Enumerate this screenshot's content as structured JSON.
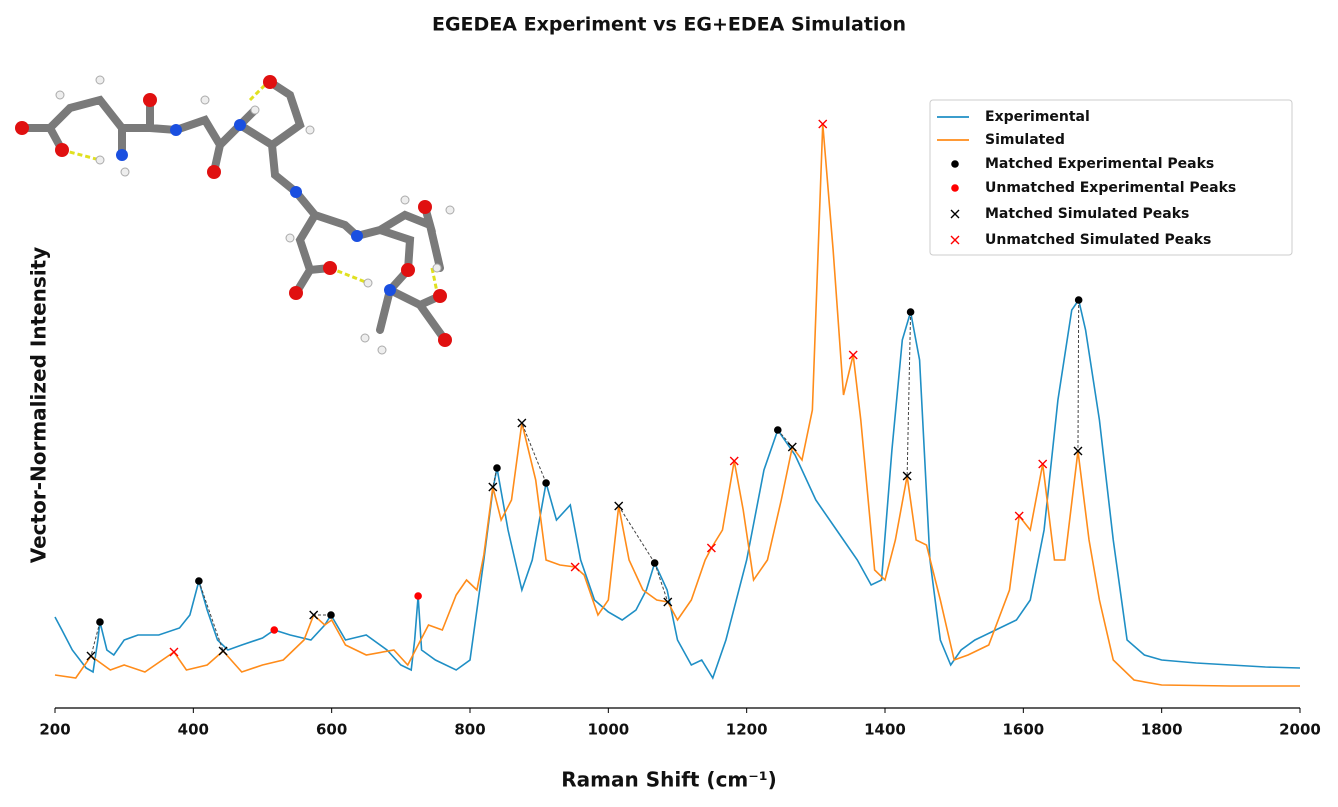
{
  "chart_data": {
    "type": "line",
    "title": "EGEDEA Experiment vs EG+EDEA Simulation",
    "xlabel": "Raman Shift (cm⁻¹)",
    "ylabel": "Vector-Normalized Intensity",
    "xlim": [
      200,
      2000
    ],
    "xticks": [
      200,
      400,
      600,
      800,
      1000,
      1200,
      1400,
      1600,
      1800,
      2000
    ],
    "ylim": [
      0,
      120
    ],
    "legend": "upper right",
    "series": [
      {
        "name": "Experimental",
        "color": "#1f8fc5",
        "x": [
          200,
          210,
          225,
          245,
          255,
          262,
          265,
          275,
          285,
          300,
          320,
          350,
          380,
          395,
          408,
          420,
          435,
          450,
          470,
          500,
          517,
          540,
          570,
          590,
          599,
          620,
          650,
          680,
          700,
          715,
          720,
          725,
          730,
          750,
          780,
          800,
          820,
          833,
          839,
          855,
          875,
          890,
          910,
          925,
          945,
          960,
          980,
          1000,
          1020,
          1040,
          1055,
          1067,
          1085,
          1100,
          1120,
          1135,
          1151,
          1170,
          1200,
          1225,
          1245,
          1270,
          1300,
          1330,
          1360,
          1380,
          1395,
          1410,
          1425,
          1437,
          1450,
          1465,
          1480,
          1495,
          1510,
          1530,
          1560,
          1590,
          1610,
          1630,
          1650,
          1670,
          1680,
          1690,
          1710,
          1730,
          1750,
          1775,
          1800,
          1850,
          1900,
          1950,
          2000
        ],
        "values": [
          18.2,
          15.6,
          11.6,
          8,
          7.2,
          13.6,
          17.2,
          11.6,
          10.6,
          13.6,
          14.6,
          14.6,
          16,
          18.6,
          25.4,
          19.6,
          13.6,
          11.6,
          12.6,
          14,
          15.6,
          14.6,
          13.6,
          16.6,
          18.6,
          13.6,
          14.6,
          11.6,
          8.6,
          7.6,
          13.6,
          22.4,
          11.6,
          9.6,
          7.6,
          9.6,
          29.6,
          43.6,
          48,
          35.6,
          23.6,
          29.6,
          45,
          37.6,
          40.6,
          29.6,
          21.6,
          19.2,
          17.6,
          19.6,
          23.6,
          29,
          23.6,
          13.6,
          8.6,
          9.6,
          6,
          13.6,
          29.6,
          47.6,
          55.6,
          50.6,
          41.6,
          35.6,
          29.6,
          24.6,
          25.6,
          51.6,
          73.6,
          79.2,
          69.6,
          29.6,
          13.6,
          8.6,
          11.6,
          13.6,
          15.6,
          17.6,
          21.6,
          35.6,
          61.6,
          79.6,
          81.6,
          75.6,
          57.6,
          33.6,
          13.6,
          10.6,
          9.6,
          9,
          8.6,
          8.2,
          8
        ]
      },
      {
        "name": "Simulated",
        "color": "#ff8c1a",
        "x": [
          200,
          230,
          252,
          260,
          280,
          300,
          330,
          372,
          390,
          420,
          443,
          470,
          500,
          530,
          560,
          574,
          590,
          600,
          620,
          650,
          690,
          710,
          740,
          760,
          780,
          795,
          810,
          820,
          833,
          845,
          860,
          875,
          895,
          910,
          930,
          952,
          965,
          985,
          1000,
          1015,
          1030,
          1050,
          1070,
          1086,
          1100,
          1120,
          1140,
          1149,
          1165,
          1182,
          1195,
          1210,
          1230,
          1250,
          1266,
          1280,
          1295,
          1310,
          1325,
          1340,
          1354,
          1365,
          1385,
          1400,
          1415,
          1432,
          1445,
          1460,
          1480,
          1500,
          1520,
          1550,
          1580,
          1594,
          1610,
          1628,
          1645,
          1660,
          1679,
          1695,
          1710,
          1730,
          1760,
          1800,
          1900,
          2000
        ],
        "values": [
          6.6,
          6,
          10.4,
          9.6,
          7.6,
          8.6,
          7.2,
          11.2,
          7.6,
          8.6,
          11.4,
          7.2,
          8.6,
          9.6,
          13.6,
          18.6,
          16.6,
          17.6,
          12.6,
          10.6,
          11.6,
          8.6,
          16.6,
          15.6,
          22.6,
          25.6,
          23.6,
          30.6,
          44.2,
          37.6,
          41.6,
          57,
          45.6,
          29.6,
          28.6,
          28.2,
          26.6,
          18.6,
          21.6,
          40.4,
          29.6,
          23.6,
          21.6,
          21.2,
          17.6,
          21.6,
          29.6,
          32,
          35.6,
          49.4,
          39.6,
          25.6,
          29.6,
          41.6,
          52.2,
          49.6,
          59.6,
          116.8,
          91.6,
          62.6,
          70.6,
          57.6,
          27.6,
          25.6,
          33.6,
          46.4,
          33.6,
          32.6,
          21.6,
          9.6,
          10.6,
          12.6,
          23.6,
          38.4,
          35.6,
          48.8,
          29.6,
          29.6,
          51.4,
          33.6,
          21.6,
          9.6,
          5.6,
          4.6,
          4.4,
          4.4
        ]
      }
    ],
    "peaks": [
      {
        "name": "Matched Experimental Peaks",
        "marker": "o",
        "color": "#000000",
        "x": [
          265,
          408,
          599,
          839,
          910,
          1067,
          1245,
          1437,
          1680
        ],
        "values": [
          17.2,
          25.4,
          18.6,
          48,
          45,
          29,
          55.6,
          79.2,
          81.6
        ]
      },
      {
        "name": "Unmatched Experimental Peaks",
        "marker": "o",
        "color": "#ff0000",
        "x": [
          517,
          725
        ],
        "values": [
          15.6,
          22.4
        ]
      },
      {
        "name": "Matched Simulated Peaks",
        "marker": "x",
        "color": "#000000",
        "x": [
          252,
          443,
          574,
          833,
          875,
          1015,
          1086,
          1266,
          1432,
          1679
        ],
        "values": [
          10.4,
          11.4,
          18.6,
          44.2,
          57,
          40.4,
          21.2,
          52.2,
          46.4,
          51.4
        ]
      },
      {
        "name": "Unmatched Simulated Peaks",
        "marker": "x",
        "color": "#ff0000",
        "x": [
          372,
          952,
          1149,
          1182,
          1310,
          1354,
          1594,
          1628
        ],
        "values": [
          11.2,
          28.2,
          32,
          49.4,
          116.8,
          70.6,
          38.4,
          48.8
        ]
      }
    ],
    "matches": [
      [
        0,
        0
      ],
      [
        1,
        1
      ],
      [
        2,
        2
      ],
      [
        3,
        3
      ],
      [
        4,
        4
      ],
      [
        5,
        5
      ],
      [
        5,
        6
      ],
      [
        6,
        7
      ],
      [
        7,
        8
      ],
      [
        8,
        9
      ]
    ]
  }
}
